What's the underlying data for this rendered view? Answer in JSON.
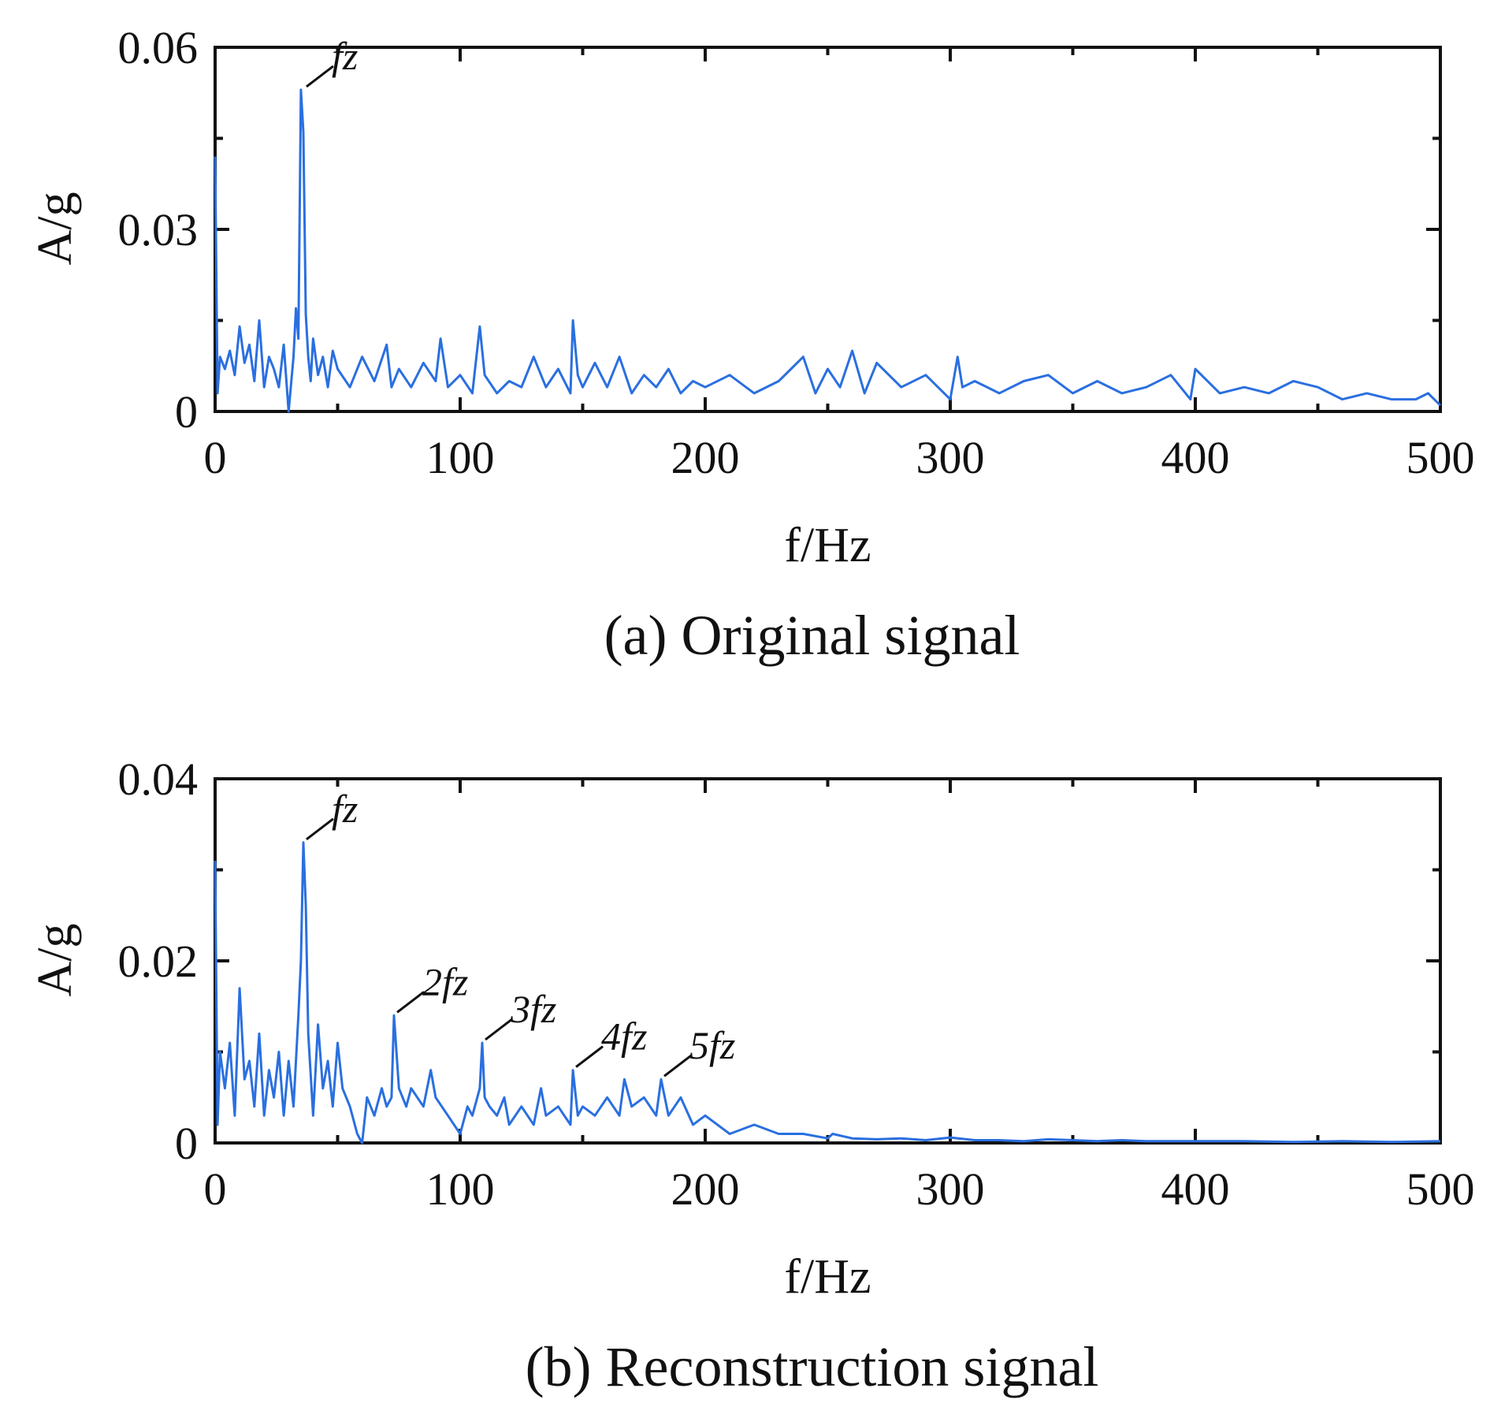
{
  "chart_data": [
    {
      "id": "a",
      "type": "line",
      "caption": "(a) Original signal",
      "xlabel": "f/Hz",
      "ylabel": "A/g",
      "xlim": [
        0,
        500
      ],
      "ylim": [
        0,
        0.06
      ],
      "xticks": [
        0,
        100,
        200,
        300,
        400,
        500
      ],
      "xtick_labels": [
        "0",
        "100",
        "200",
        "300",
        "400",
        "500"
      ],
      "yticks": [
        0,
        0.03,
        0.06
      ],
      "ytick_labels": [
        "0",
        "0.03",
        "0.06"
      ],
      "color": "#2a6fe0",
      "series": [
        {
          "name": "spectrum",
          "x": [
            0,
            1,
            2,
            4,
            6,
            8,
            10,
            12,
            14,
            16,
            18,
            20,
            22,
            24,
            26,
            28,
            30,
            32,
            33,
            34,
            35,
            36,
            37,
            38,
            39,
            40,
            42,
            44,
            46,
            48,
            50,
            55,
            60,
            65,
            70,
            72,
            75,
            80,
            85,
            90,
            92,
            95,
            100,
            105,
            108,
            110,
            115,
            120,
            125,
            130,
            135,
            140,
            145,
            146,
            148,
            150,
            155,
            160,
            165,
            170,
            175,
            180,
            185,
            190,
            195,
            200,
            210,
            220,
            230,
            240,
            245,
            250,
            255,
            260,
            265,
            270,
            280,
            290,
            300,
            303,
            305,
            310,
            320,
            330,
            340,
            350,
            360,
            370,
            380,
            390,
            398,
            400,
            410,
            420,
            430,
            440,
            450,
            460,
            470,
            480,
            490,
            495,
            500
          ],
          "y": [
            0.042,
            0.003,
            0.009,
            0.007,
            0.01,
            0.006,
            0.014,
            0.008,
            0.011,
            0.005,
            0.015,
            0.004,
            0.009,
            0.007,
            0.004,
            0.011,
            0.0,
            0.009,
            0.017,
            0.012,
            0.053,
            0.046,
            0.016,
            0.009,
            0.005,
            0.012,
            0.006,
            0.009,
            0.004,
            0.01,
            0.007,
            0.004,
            0.009,
            0.005,
            0.011,
            0.004,
            0.007,
            0.004,
            0.008,
            0.005,
            0.012,
            0.004,
            0.006,
            0.003,
            0.014,
            0.006,
            0.003,
            0.005,
            0.004,
            0.009,
            0.004,
            0.007,
            0.003,
            0.015,
            0.006,
            0.004,
            0.008,
            0.004,
            0.009,
            0.003,
            0.006,
            0.004,
            0.007,
            0.003,
            0.005,
            0.004,
            0.006,
            0.003,
            0.005,
            0.009,
            0.003,
            0.007,
            0.004,
            0.01,
            0.003,
            0.008,
            0.004,
            0.006,
            0.002,
            0.009,
            0.004,
            0.005,
            0.003,
            0.005,
            0.006,
            0.003,
            0.005,
            0.003,
            0.004,
            0.006,
            0.002,
            0.007,
            0.003,
            0.004,
            0.003,
            0.005,
            0.004,
            0.002,
            0.003,
            0.002,
            0.002,
            0.003,
            0.001
          ]
        }
      ],
      "annotations": [
        {
          "label": "fz",
          "x": 36,
          "y": 0.053
        }
      ]
    },
    {
      "id": "b",
      "type": "line",
      "caption": "(b) Reconstruction signal",
      "xlabel": "f/Hz",
      "ylabel": "A/g",
      "xlim": [
        0,
        500
      ],
      "ylim": [
        0,
        0.04
      ],
      "xticks": [
        0,
        100,
        200,
        300,
        400,
        500
      ],
      "xtick_labels": [
        "0",
        "100",
        "200",
        "300",
        "400",
        "500"
      ],
      "yticks": [
        0,
        0.02,
        0.04
      ],
      "ytick_labels": [
        "0",
        "0.02",
        "0.04"
      ],
      "color": "#2a6fe0",
      "series": [
        {
          "name": "spectrum",
          "x": [
            0,
            1,
            2,
            4,
            6,
            8,
            10,
            12,
            14,
            16,
            18,
            20,
            22,
            24,
            26,
            28,
            30,
            32,
            34,
            35,
            36,
            37,
            38,
            40,
            42,
            44,
            46,
            48,
            50,
            52,
            55,
            58,
            60,
            62,
            65,
            68,
            70,
            72,
            73,
            75,
            78,
            80,
            85,
            88,
            90,
            95,
            100,
            103,
            105,
            108,
            109,
            110,
            112,
            115,
            118,
            120,
            125,
            130,
            133,
            135,
            140,
            145,
            146,
            148,
            150,
            155,
            160,
            165,
            167,
            170,
            175,
            180,
            182,
            185,
            190,
            195,
            200,
            210,
            220,
            230,
            240,
            250,
            252,
            260,
            270,
            280,
            290,
            300,
            310,
            320,
            330,
            340,
            350,
            360,
            370,
            380,
            400,
            420,
            440,
            460,
            480,
            500
          ],
          "y": [
            0.031,
            0.002,
            0.01,
            0.006,
            0.011,
            0.003,
            0.017,
            0.007,
            0.009,
            0.004,
            0.012,
            0.003,
            0.008,
            0.005,
            0.01,
            0.003,
            0.009,
            0.004,
            0.014,
            0.02,
            0.033,
            0.026,
            0.012,
            0.003,
            0.013,
            0.006,
            0.009,
            0.004,
            0.011,
            0.006,
            0.004,
            0.001,
            0.0,
            0.005,
            0.003,
            0.006,
            0.004,
            0.005,
            0.014,
            0.006,
            0.004,
            0.006,
            0.004,
            0.008,
            0.005,
            0.003,
            0.001,
            0.004,
            0.003,
            0.006,
            0.011,
            0.005,
            0.004,
            0.003,
            0.005,
            0.002,
            0.004,
            0.002,
            0.006,
            0.003,
            0.004,
            0.002,
            0.008,
            0.003,
            0.004,
            0.003,
            0.005,
            0.003,
            0.007,
            0.004,
            0.005,
            0.003,
            0.007,
            0.003,
            0.005,
            0.002,
            0.003,
            0.001,
            0.002,
            0.001,
            0.001,
            0.0005,
            0.001,
            0.0005,
            0.0004,
            0.0005,
            0.0003,
            0.0006,
            0.0003,
            0.0003,
            0.0002,
            0.0004,
            0.0003,
            0.0002,
            0.0003,
            0.0002,
            0.0002,
            0.0002,
            0.0001,
            0.0002,
            0.0001,
            0.0002
          ]
        }
      ],
      "annotations": [
        {
          "label": "fz",
          "x": 36,
          "y": 0.033
        },
        {
          "label": "2fz",
          "x": 73,
          "y": 0.014
        },
        {
          "label": "3fz",
          "x": 109,
          "y": 0.011
        },
        {
          "label": "4fz",
          "x": 146,
          "y": 0.008
        },
        {
          "label": "5fz",
          "x": 182,
          "y": 0.007
        }
      ]
    }
  ]
}
